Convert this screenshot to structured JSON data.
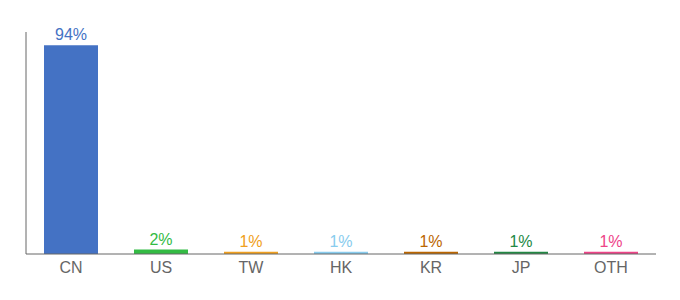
{
  "chart_data": {
    "type": "bar",
    "categories": [
      "CN",
      "US",
      "TW",
      "HK",
      "KR",
      "JP",
      "OTH"
    ],
    "values": [
      94,
      2,
      1,
      1,
      1,
      1,
      1
    ],
    "value_labels": [
      "94%",
      "2%",
      "1%",
      "1%",
      "1%",
      "1%",
      "1%"
    ],
    "colors": [
      "#4472c4",
      "#33bb44",
      "#f0a020",
      "#88ccee",
      "#bb6600",
      "#228844",
      "#ee4488"
    ],
    "ylim": [
      0,
      100
    ],
    "yticks": [],
    "data_labels": true,
    "tick_labels": "x",
    "grid": false
  }
}
